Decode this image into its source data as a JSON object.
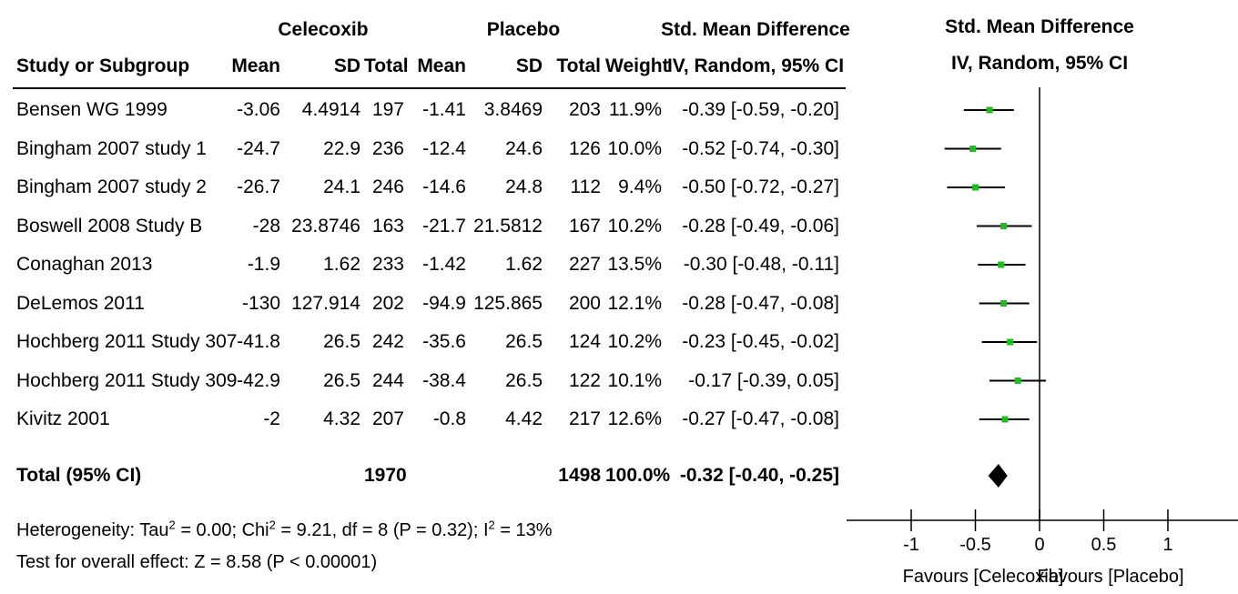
{
  "header": {
    "group1": "Celecoxib",
    "group2": "Placebo",
    "effect_title": "Std. Mean Difference",
    "plot_title": "Std. Mean Difference",
    "plot_subtitle": "IV, Random, 95% CI",
    "columns": {
      "study": "Study or Subgroup",
      "mean1": "Mean",
      "sd1": "SD",
      "total1": "Total",
      "mean2": "Mean",
      "sd2": "SD",
      "total2": "Total",
      "weight": "Weight",
      "ci": "IV, Random, 95% CI"
    }
  },
  "studies": [
    {
      "study": "Bensen WG 1999",
      "mean1": "-3.06",
      "sd1": "4.4914",
      "total1": "197",
      "mean2": "-1.41",
      "sd2": "3.8469",
      "total2": "203",
      "weight": "11.9%",
      "ci": "-0.39 [-0.59, -0.20]"
    },
    {
      "study": "Bingham 2007 study 1",
      "mean1": "-24.7",
      "sd1": "22.9",
      "total1": "236",
      "mean2": "-12.4",
      "sd2": "24.6",
      "total2": "126",
      "weight": "10.0%",
      "ci": "-0.52 [-0.74, -0.30]"
    },
    {
      "study": "Bingham 2007 study 2",
      "mean1": "-26.7",
      "sd1": "24.1",
      "total1": "246",
      "mean2": "-14.6",
      "sd2": "24.8",
      "total2": "112",
      "weight": "9.4%",
      "ci": "-0.50 [-0.72, -0.27]"
    },
    {
      "study": "Boswell 2008 Study B",
      "mean1": "-28",
      "sd1": "23.8746",
      "total1": "163",
      "mean2": "-21.7",
      "sd2": "21.5812",
      "total2": "167",
      "weight": "10.2%",
      "ci": "-0.28 [-0.49, -0.06]"
    },
    {
      "study": "Conaghan 2013",
      "mean1": "-1.9",
      "sd1": "1.62",
      "total1": "233",
      "mean2": "-1.42",
      "sd2": "1.62",
      "total2": "227",
      "weight": "13.5%",
      "ci": "-0.30 [-0.48, -0.11]"
    },
    {
      "study": "DeLemos 2011",
      "mean1": "-130",
      "sd1": "127.914",
      "total1": "202",
      "mean2": "-94.9",
      "sd2": "125.865",
      "total2": "200",
      "weight": "12.1%",
      "ci": "-0.28 [-0.47, -0.08]"
    },
    {
      "study": "Hochberg 2011 Study 307",
      "mean1": "-41.8",
      "sd1": "26.5",
      "total1": "242",
      "mean2": "-35.6",
      "sd2": "26.5",
      "total2": "124",
      "weight": "10.2%",
      "ci": "-0.23 [-0.45, -0.02]"
    },
    {
      "study": "Hochberg 2011 Study 309",
      "mean1": "-42.9",
      "sd1": "26.5",
      "total1": "244",
      "mean2": "-38.4",
      "sd2": "26.5",
      "total2": "122",
      "weight": "10.1%",
      "ci": "-0.17 [-0.39, 0.05]"
    },
    {
      "study": "Kivitz 2001",
      "mean1": "-2",
      "sd1": "4.32",
      "total1": "207",
      "mean2": "-0.8",
      "sd2": "4.42",
      "total2": "217",
      "weight": "12.6%",
      "ci": "-0.27 [-0.47, -0.08]"
    }
  ],
  "total": {
    "label": "Total (95% CI)",
    "total1": "1970",
    "total2": "1498",
    "weight": "100.0%",
    "ci": "-0.32 [-0.40, -0.25]"
  },
  "heterogeneity": {
    "prefix": "Heterogeneity: Tau",
    "sup1": "2",
    "middle": " = 0.00; Chi",
    "sup2": "2",
    "middle2": " = 9.21, df = 8 (P = 0.32); I",
    "sup3": "2",
    "suffix": " = 13%"
  },
  "overall_effect": "Test for overall effect: Z = 8.58 (P < 0.00001)",
  "colors": {
    "marker": "#22b922",
    "line": "#000000",
    "diamond": "#000000"
  },
  "chart_data": {
    "type": "scatter",
    "subtype": "forest-plot",
    "title": "Std. Mean Difference",
    "subtitle": "IV, Random, 95% CI",
    "xlim": [
      -1.3,
      1.3
    ],
    "xticks": [
      -1,
      -0.5,
      0,
      0.5,
      1
    ],
    "xtick_labels": [
      "-1",
      "-0.5",
      "0",
      "0.5",
      "1"
    ],
    "favours_left": "Favours [Celecoxib]",
    "favours_right": "Favours [Placebo]",
    "studies": [
      {
        "name": "Bensen WG 1999",
        "estimate": -0.39,
        "lower": -0.59,
        "upper": -0.2
      },
      {
        "name": "Bingham 2007 study 1",
        "estimate": -0.52,
        "lower": -0.74,
        "upper": -0.3
      },
      {
        "name": "Bingham 2007 study 2",
        "estimate": -0.5,
        "lower": -0.72,
        "upper": -0.27
      },
      {
        "name": "Boswell 2008 Study B",
        "estimate": -0.28,
        "lower": -0.49,
        "upper": -0.06
      },
      {
        "name": "Conaghan 2013",
        "estimate": -0.3,
        "lower": -0.48,
        "upper": -0.11
      },
      {
        "name": "DeLemos 2011",
        "estimate": -0.28,
        "lower": -0.47,
        "upper": -0.08
      },
      {
        "name": "Hochberg 2011 Study 307",
        "estimate": -0.23,
        "lower": -0.45,
        "upper": -0.02
      },
      {
        "name": "Hochberg 2011 Study 309",
        "estimate": -0.17,
        "lower": -0.39,
        "upper": 0.05
      },
      {
        "name": "Kivitz 2001",
        "estimate": -0.27,
        "lower": -0.47,
        "upper": -0.08
      }
    ],
    "pooled": {
      "estimate": -0.32,
      "lower": -0.4,
      "upper": -0.25
    }
  }
}
